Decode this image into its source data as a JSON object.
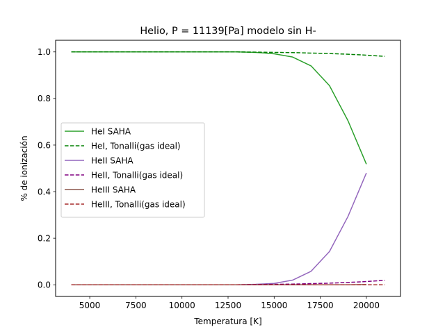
{
  "chart_data": {
    "type": "line",
    "title": "Helio, P = 11139[Pa] modelo sin H-",
    "xlabel": "Temperatura [K]",
    "ylabel": "% de ionización",
    "xlim": [
      3150,
      21850
    ],
    "ylim": [
      -0.05,
      1.05
    ],
    "xticks": [
      {
        "value": 5000,
        "label": "5000"
      },
      {
        "value": 7500,
        "label": "7500"
      },
      {
        "value": 10000,
        "label": "10000"
      },
      {
        "value": 12500,
        "label": "12500"
      },
      {
        "value": 15000,
        "label": "15000"
      },
      {
        "value": 17500,
        "label": "17500"
      },
      {
        "value": 20000,
        "label": "20000"
      }
    ],
    "yticks": [
      {
        "value": 0.0,
        "label": "0.0"
      },
      {
        "value": 0.2,
        "label": "0.2"
      },
      {
        "value": 0.4,
        "label": "0.4"
      },
      {
        "value": 0.6,
        "label": "0.6"
      },
      {
        "value": 0.8,
        "label": "0.8"
      },
      {
        "value": 1.0,
        "label": "1.0"
      }
    ],
    "grid": false,
    "legend_position": "center-left",
    "series": [
      {
        "name": "HeI SAHA",
        "color": "#2ca02c",
        "dash": "solid",
        "points": [
          [
            4000,
            1.0
          ],
          [
            5000,
            1.0
          ],
          [
            6000,
            1.0
          ],
          [
            7000,
            1.0
          ],
          [
            8000,
            1.0
          ],
          [
            9000,
            1.0
          ],
          [
            10000,
            1.0
          ],
          [
            11000,
            1.0
          ],
          [
            12000,
            1.0
          ],
          [
            13000,
            1.0
          ],
          [
            14000,
            0.998
          ],
          [
            15000,
            0.992
          ],
          [
            16000,
            0.978
          ],
          [
            17000,
            0.94
          ],
          [
            18000,
            0.855
          ],
          [
            19000,
            0.705
          ],
          [
            20000,
            0.518
          ]
        ]
      },
      {
        "name": "HeI, Tonalli(gas ideal)",
        "color": "#008000",
        "dash": "dashed",
        "points": [
          [
            4000,
            1.0
          ],
          [
            5000,
            1.0
          ],
          [
            6000,
            1.0
          ],
          [
            7000,
            1.0
          ],
          [
            8000,
            1.0
          ],
          [
            9000,
            1.0
          ],
          [
            10000,
            1.0
          ],
          [
            11000,
            1.0
          ],
          [
            12000,
            1.0
          ],
          [
            13000,
            1.0
          ],
          [
            14000,
            0.999
          ],
          [
            15000,
            0.998
          ],
          [
            16000,
            0.997
          ],
          [
            17000,
            0.995
          ],
          [
            18000,
            0.993
          ],
          [
            19000,
            0.99
          ],
          [
            20000,
            0.986
          ],
          [
            21000,
            0.981
          ]
        ]
      },
      {
        "name": "HeII SAHA",
        "color": "#9467bd",
        "dash": "solid",
        "points": [
          [
            4000,
            0.0
          ],
          [
            5000,
            0.0
          ],
          [
            6000,
            0.0
          ],
          [
            7000,
            0.0
          ],
          [
            8000,
            0.0
          ],
          [
            9000,
            0.0
          ],
          [
            10000,
            0.0
          ],
          [
            11000,
            0.0
          ],
          [
            12000,
            0.0
          ],
          [
            13000,
            0.0
          ],
          [
            14000,
            0.002
          ],
          [
            15000,
            0.006
          ],
          [
            16000,
            0.02
          ],
          [
            17000,
            0.058
          ],
          [
            18000,
            0.143
          ],
          [
            19000,
            0.293
          ],
          [
            20000,
            0.48
          ]
        ]
      },
      {
        "name": "HeII, Tonalli(gas ideal)",
        "color": "#800080",
        "dash": "dashed",
        "points": [
          [
            4000,
            0.0
          ],
          [
            5000,
            0.0
          ],
          [
            6000,
            0.0
          ],
          [
            7000,
            0.0
          ],
          [
            8000,
            0.0
          ],
          [
            9000,
            0.0
          ],
          [
            10000,
            0.0
          ],
          [
            11000,
            0.0
          ],
          [
            12000,
            0.0
          ],
          [
            13000,
            0.0
          ],
          [
            14000,
            0.001
          ],
          [
            15000,
            0.002
          ],
          [
            16000,
            0.003
          ],
          [
            17000,
            0.005
          ],
          [
            18000,
            0.007
          ],
          [
            19000,
            0.01
          ],
          [
            20000,
            0.014
          ],
          [
            21000,
            0.019
          ]
        ]
      },
      {
        "name": "HeIII SAHA",
        "color": "#8c564b",
        "dash": "solid",
        "points": [
          [
            4000,
            0.0
          ],
          [
            5000,
            0.0
          ],
          [
            6000,
            0.0
          ],
          [
            7000,
            0.0
          ],
          [
            8000,
            0.0
          ],
          [
            9000,
            0.0
          ],
          [
            10000,
            0.0
          ],
          [
            11000,
            0.0
          ],
          [
            12000,
            0.0
          ],
          [
            13000,
            0.0
          ],
          [
            14000,
            0.0
          ],
          [
            15000,
            0.0
          ],
          [
            16000,
            0.0
          ],
          [
            17000,
            0.0
          ],
          [
            18000,
            0.0
          ],
          [
            19000,
            0.0
          ],
          [
            20000,
            0.001
          ]
        ]
      },
      {
        "name": "HeIII, Tonalli(gas ideal)",
        "color": "#a52a2a",
        "dash": "dashed",
        "points": [
          [
            4000,
            0.0
          ],
          [
            5000,
            0.0
          ],
          [
            6000,
            0.0
          ],
          [
            7000,
            0.0
          ],
          [
            8000,
            0.0
          ],
          [
            9000,
            0.0
          ],
          [
            10000,
            0.0
          ],
          [
            11000,
            0.0
          ],
          [
            12000,
            0.0
          ],
          [
            13000,
            0.0
          ],
          [
            14000,
            0.0
          ],
          [
            15000,
            0.0
          ],
          [
            16000,
            0.0
          ],
          [
            17000,
            0.0
          ],
          [
            18000,
            0.0
          ],
          [
            19000,
            0.0
          ],
          [
            20000,
            0.0
          ],
          [
            21000,
            0.0
          ]
        ]
      }
    ]
  }
}
